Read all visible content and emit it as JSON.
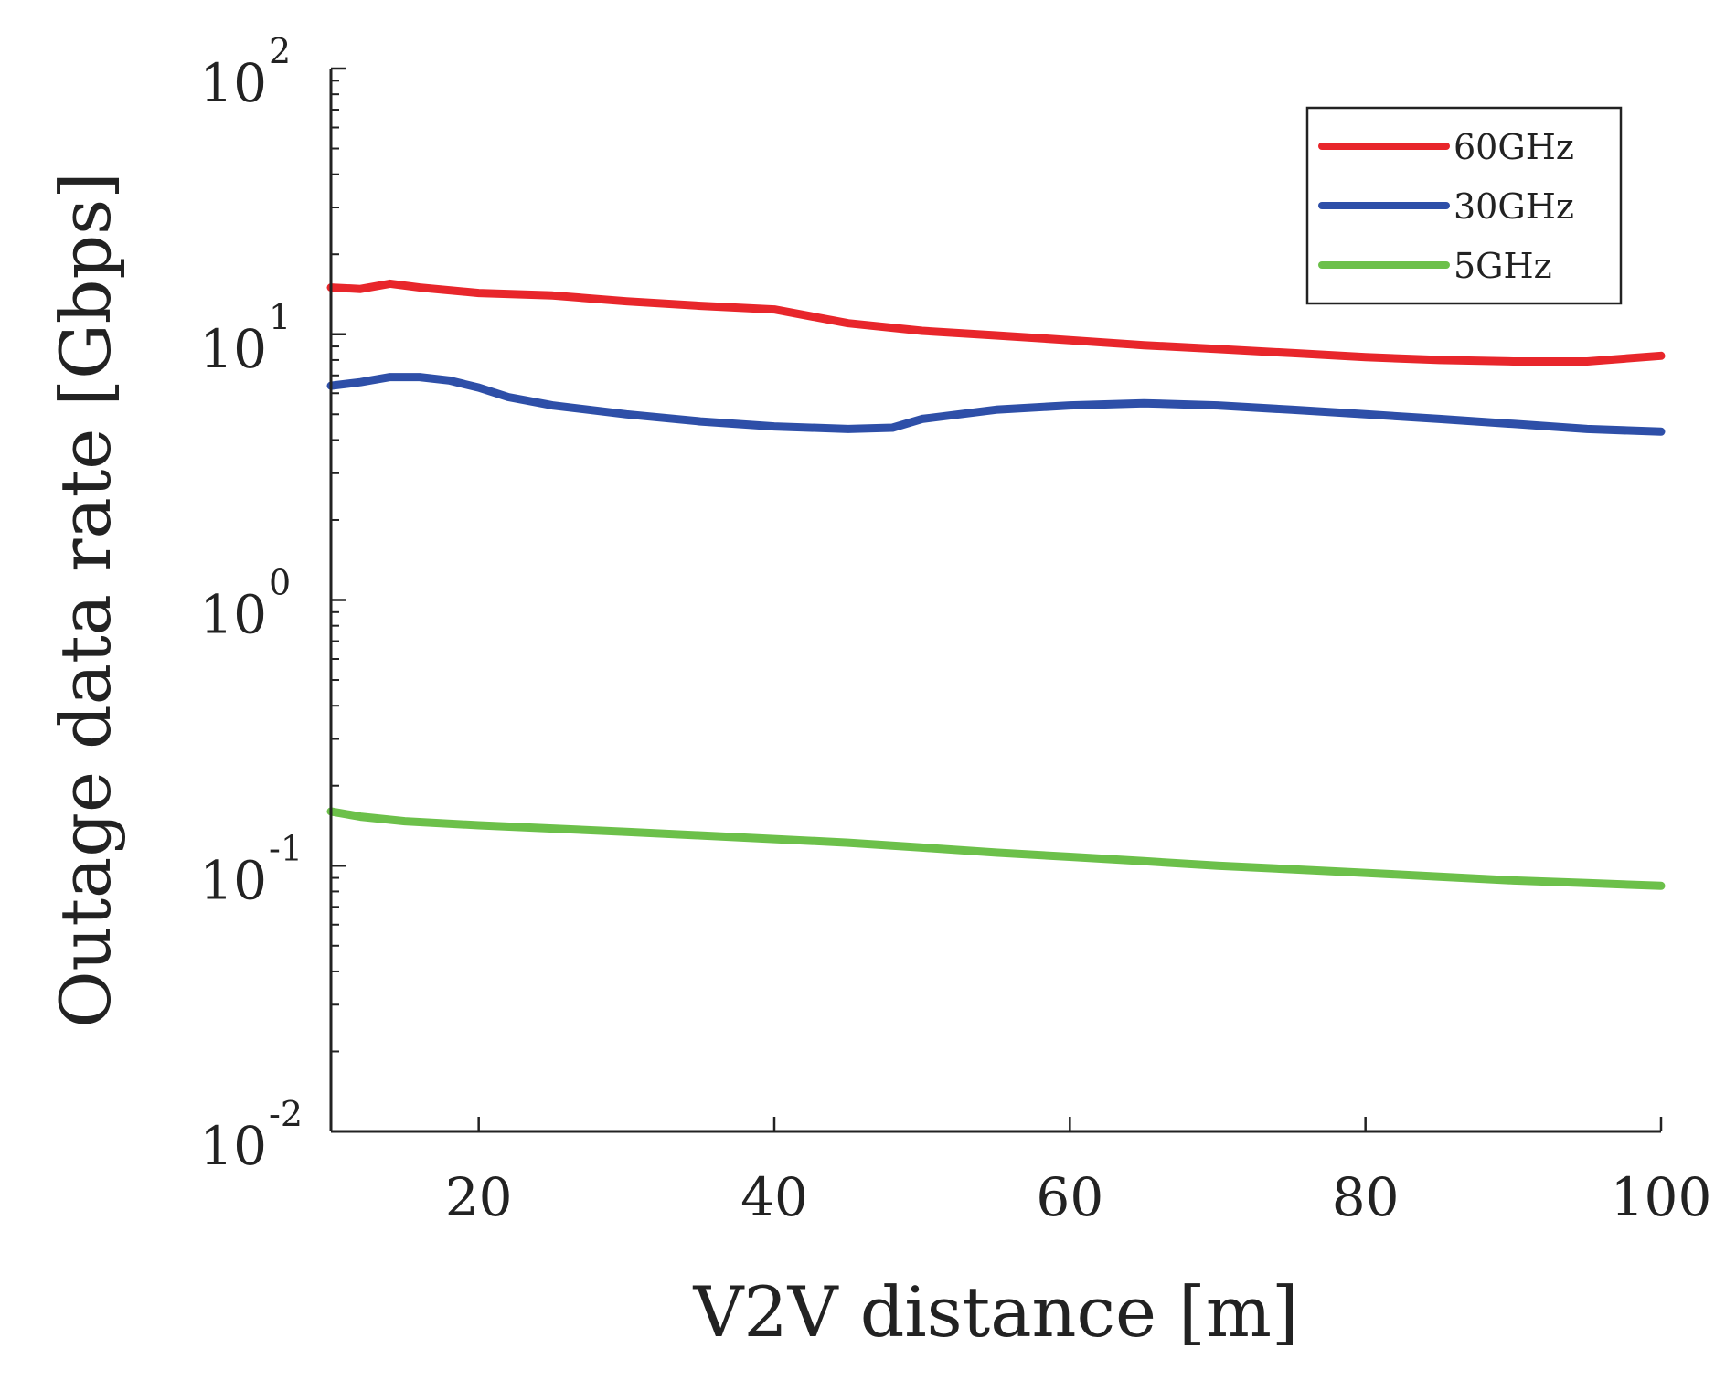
{
  "chart_data": {
    "type": "line",
    "xlabel": "V2V distance [m]",
    "ylabel": "Outage data rate [Gbps]",
    "xlim": [
      10,
      100
    ],
    "ylim": [
      0.01,
      100
    ],
    "yscale": "log",
    "grid": false,
    "legend_position": "top-right",
    "x_ticks": [
      20,
      40,
      60,
      80,
      100
    ],
    "x_tick_labels": [
      "20",
      "40",
      "60",
      "80",
      "100"
    ],
    "y_ticks": [
      {
        "value": 0.01,
        "base": "10",
        "exp": "-2"
      },
      {
        "value": 0.1,
        "base": "10",
        "exp": "-1"
      },
      {
        "value": 1,
        "base": "10",
        "exp": "0"
      },
      {
        "value": 10,
        "base": "10",
        "exp": "1"
      },
      {
        "value": 100,
        "base": "10",
        "exp": "2"
      }
    ],
    "series": [
      {
        "name": "60GHz",
        "color": "#e8262b",
        "x": [
          10,
          12,
          14,
          16,
          20,
          25,
          30,
          35,
          40,
          45,
          50,
          55,
          60,
          65,
          70,
          75,
          80,
          85,
          90,
          95,
          100
        ],
        "y": [
          15.0,
          14.8,
          15.5,
          15.0,
          14.3,
          14.0,
          13.3,
          12.8,
          12.4,
          11.0,
          10.3,
          9.9,
          9.5,
          9.1,
          8.8,
          8.5,
          8.2,
          8.0,
          7.9,
          7.9,
          8.3
        ]
      },
      {
        "name": "30GHz",
        "color": "#2e4fa8",
        "x": [
          10,
          12,
          14,
          16,
          18,
          20,
          22,
          25,
          30,
          35,
          40,
          45,
          48,
          50,
          55,
          60,
          65,
          70,
          75,
          80,
          85,
          90,
          95,
          100
        ],
        "y": [
          6.4,
          6.6,
          6.9,
          6.9,
          6.7,
          6.3,
          5.8,
          5.4,
          5.0,
          4.7,
          4.5,
          4.4,
          4.45,
          4.8,
          5.2,
          5.4,
          5.5,
          5.4,
          5.2,
          5.0,
          4.8,
          4.6,
          4.4,
          4.3
        ]
      },
      {
        "name": "5GHz",
        "color": "#6cc04a",
        "x": [
          10,
          12,
          15,
          20,
          25,
          30,
          35,
          40,
          45,
          50,
          55,
          60,
          65,
          70,
          75,
          80,
          85,
          90,
          95,
          100
        ],
        "y": [
          0.16,
          0.153,
          0.147,
          0.142,
          0.138,
          0.134,
          0.13,
          0.126,
          0.122,
          0.117,
          0.112,
          0.108,
          0.104,
          0.1,
          0.097,
          0.094,
          0.091,
          0.088,
          0.086,
          0.084
        ]
      }
    ]
  }
}
